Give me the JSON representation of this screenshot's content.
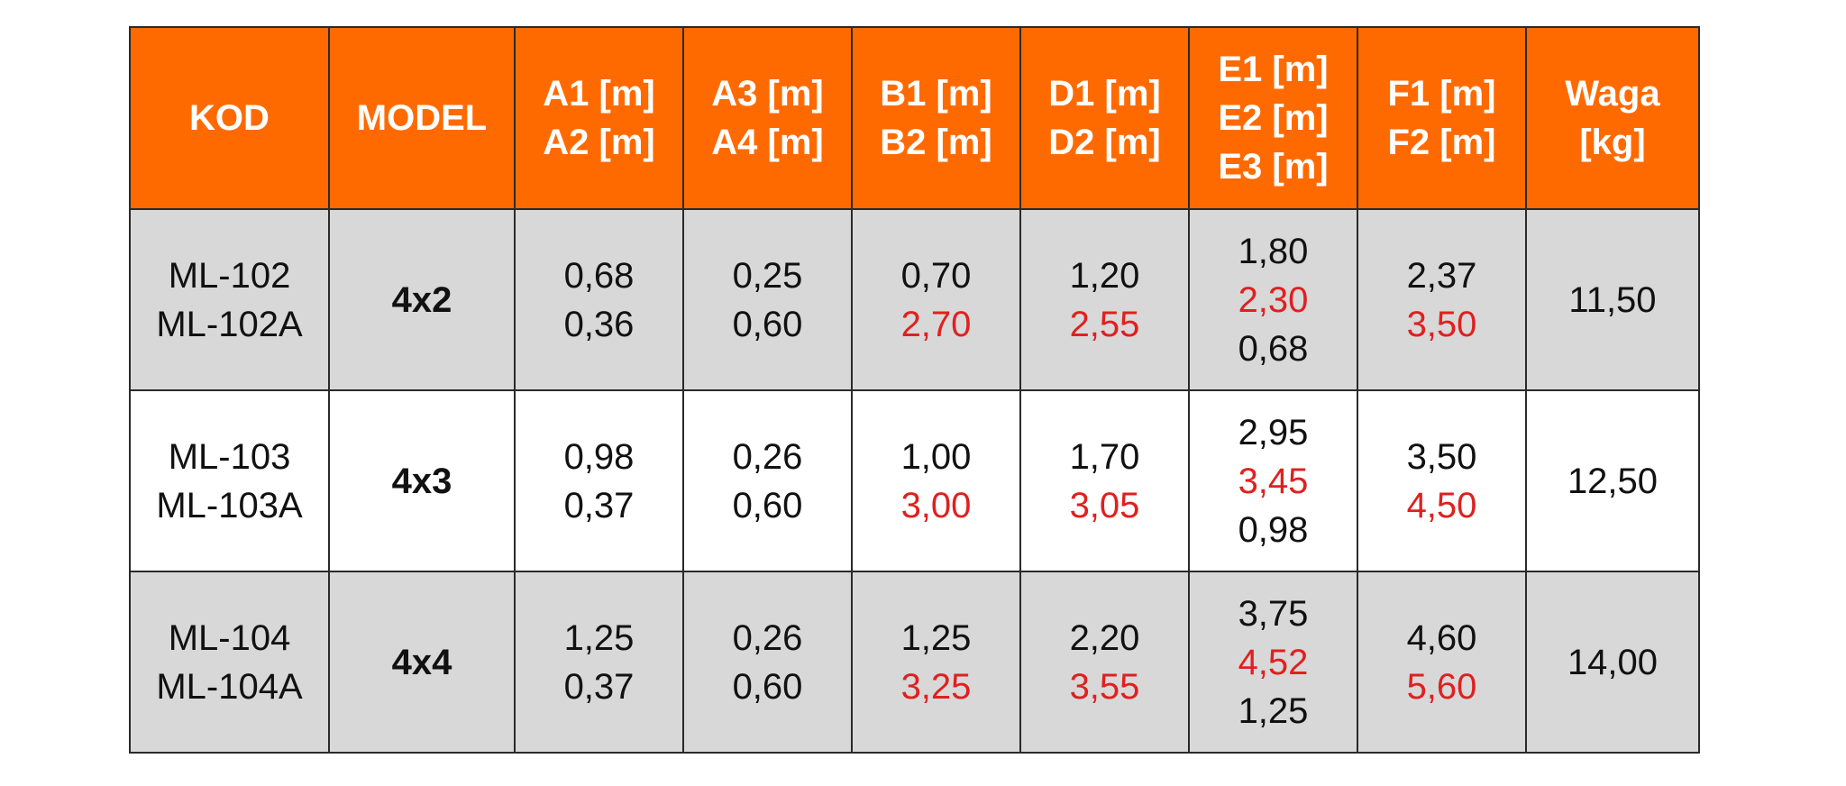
{
  "colors": {
    "header_bg": "#ff6a00",
    "header_text": "#ffffff",
    "row_shade": "#d8d8d8",
    "row_plain": "#ffffff",
    "highlight_value": "#e02020"
  },
  "table": {
    "headers": [
      [
        "KOD"
      ],
      [
        "MODEL"
      ],
      [
        "A1 [m]",
        "A2 [m]"
      ],
      [
        "A3 [m]",
        "A4 [m]"
      ],
      [
        "B1 [m]",
        "B2 [m]"
      ],
      [
        "D1 [m]",
        "D2 [m]"
      ],
      [
        "E1 [m]",
        "E2 [m]",
        "E3 [m]"
      ],
      [
        "F1 [m]",
        "F2 [m]"
      ],
      [
        "Waga",
        "[kg]"
      ]
    ],
    "rows": [
      {
        "kod": [
          "ML-102",
          "ML-102A"
        ],
        "model": "4x2",
        "a": [
          "0,68",
          "0,36"
        ],
        "a34": [
          "0,25",
          "0,60"
        ],
        "b": [
          "0,70",
          "2,70"
        ],
        "d": [
          "1,20",
          "2,55"
        ],
        "e": [
          "1,80",
          "2,30",
          "0,68"
        ],
        "f": [
          "2,37",
          "3,50"
        ],
        "waga": "11,50"
      },
      {
        "kod": [
          "ML-103",
          "ML-103A"
        ],
        "model": "4x3",
        "a": [
          "0,98",
          "0,37"
        ],
        "a34": [
          "0,26",
          "0,60"
        ],
        "b": [
          "1,00",
          "3,00"
        ],
        "d": [
          "1,70",
          "3,05"
        ],
        "e": [
          "2,95",
          "3,45",
          "0,98"
        ],
        "f": [
          "3,50",
          "4,50"
        ],
        "waga": "12,50"
      },
      {
        "kod": [
          "ML-104",
          "ML-104A"
        ],
        "model": "4x4",
        "a": [
          "1,25",
          "0,37"
        ],
        "a34": [
          "0,26",
          "0,60"
        ],
        "b": [
          "1,25",
          "3,25"
        ],
        "d": [
          "2,20",
          "3,55"
        ],
        "e": [
          "3,75",
          "4,52",
          "1,25"
        ],
        "f": [
          "4,60",
          "5,60"
        ],
        "waga": "14,00"
      }
    ]
  }
}
